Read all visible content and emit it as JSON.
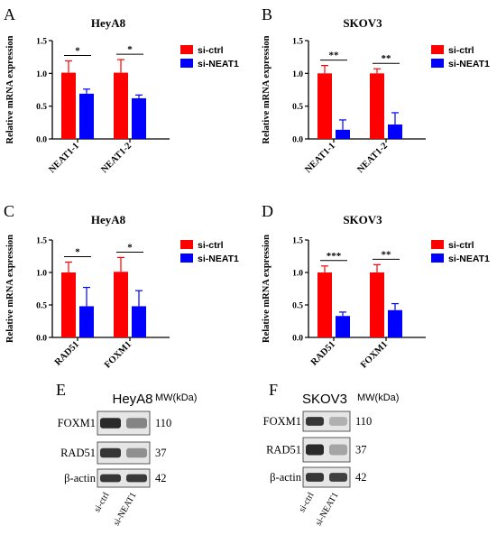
{
  "chart_data": [
    {
      "type": "bar",
      "panel_letter": "A",
      "title": "HeyA8",
      "ylabel": "Relative mRNA expression",
      "ylim": [
        0,
        1.5
      ],
      "yticks": [
        "0.0",
        "0.5",
        "1.0",
        "1.5"
      ],
      "categories": [
        "NEAT1-1",
        "NEAT1-2"
      ],
      "series": [
        {
          "name": "si-ctrl",
          "color": "#ff0000",
          "values": [
            1.01,
            1.01
          ],
          "errors": [
            0.18,
            0.2
          ]
        },
        {
          "name": "si-NEAT1",
          "color": "#0000ff",
          "values": [
            0.69,
            0.62
          ],
          "errors": [
            0.07,
            0.05
          ]
        }
      ],
      "significance": [
        "*",
        "*"
      ],
      "legend": "top-right"
    },
    {
      "type": "bar",
      "panel_letter": "B",
      "title": "SKOV3",
      "ylabel": "Relative mRNA expression",
      "ylim": [
        0,
        1.5
      ],
      "yticks": [
        "0.0",
        "0.5",
        "1.0",
        "1.5"
      ],
      "categories": [
        "NEAT1-1",
        "NEAT1-2"
      ],
      "series": [
        {
          "name": "si-ctrl",
          "color": "#ff0000",
          "values": [
            1.0,
            1.0
          ],
          "errors": [
            0.12,
            0.07
          ]
        },
        {
          "name": "si-NEAT1",
          "color": "#0000ff",
          "values": [
            0.14,
            0.22
          ],
          "errors": [
            0.15,
            0.18
          ]
        }
      ],
      "significance": [
        "**",
        "**"
      ],
      "legend": "top-right"
    },
    {
      "type": "bar",
      "panel_letter": "C",
      "title": "HeyA8",
      "ylabel": "Relative mRNA expression",
      "ylim": [
        0,
        1.5
      ],
      "yticks": [
        "0.0",
        "0.5",
        "1.0",
        "1.5"
      ],
      "categories": [
        "RAD51",
        "FOXM1"
      ],
      "series": [
        {
          "name": "si-ctrl",
          "color": "#ff0000",
          "values": [
            1.0,
            1.01
          ],
          "errors": [
            0.16,
            0.22
          ]
        },
        {
          "name": "si-NEAT1",
          "color": "#0000ff",
          "values": [
            0.48,
            0.48
          ],
          "errors": [
            0.29,
            0.24
          ]
        }
      ],
      "significance": [
        "*",
        "*"
      ],
      "legend": "top-right"
    },
    {
      "type": "bar",
      "panel_letter": "D",
      "title": "SKOV3",
      "ylabel": "Relative mRNA expression",
      "ylim": [
        0,
        1.5
      ],
      "yticks": [
        "0.0",
        "0.5",
        "1.0",
        "1.5"
      ],
      "categories": [
        "RAD51",
        "FOXM1"
      ],
      "series": [
        {
          "name": "si-ctrl",
          "color": "#ff0000",
          "values": [
            1.0,
            1.0
          ],
          "errors": [
            0.1,
            0.12
          ]
        },
        {
          "name": "si-NEAT1",
          "color": "#0000ff",
          "values": [
            0.33,
            0.42
          ],
          "errors": [
            0.06,
            0.1
          ]
        }
      ],
      "significance": [
        "***",
        "**"
      ],
      "legend": "top-right"
    }
  ],
  "western_blots": [
    {
      "panel_letter": "E",
      "cell_line": "HeyA8",
      "mw_header": "MW(kDa)",
      "rows": [
        {
          "protein": "FOXM1",
          "mw": "110",
          "intensity": [
            0.95,
            0.55
          ]
        },
        {
          "protein": "RAD51",
          "mw": "37",
          "intensity": [
            0.9,
            0.5
          ]
        },
        {
          "protein": "β-actin",
          "mw": "42",
          "intensity": [
            0.9,
            0.88
          ]
        }
      ],
      "lanes": [
        "si-ctrl",
        "si-NEAT1"
      ]
    },
    {
      "panel_letter": "F",
      "cell_line": "SKOV3",
      "mw_header": "MW(kDa)",
      "rows": [
        {
          "protein": "FOXM1",
          "mw": "110",
          "intensity": [
            0.9,
            0.35
          ]
        },
        {
          "protein": "RAD51",
          "mw": "37",
          "intensity": [
            0.95,
            0.4
          ]
        },
        {
          "protein": "β-actin",
          "mw": "42",
          "intensity": [
            0.9,
            0.85
          ]
        }
      ],
      "lanes": [
        "si-ctrl",
        "si-NEAT1"
      ]
    }
  ]
}
